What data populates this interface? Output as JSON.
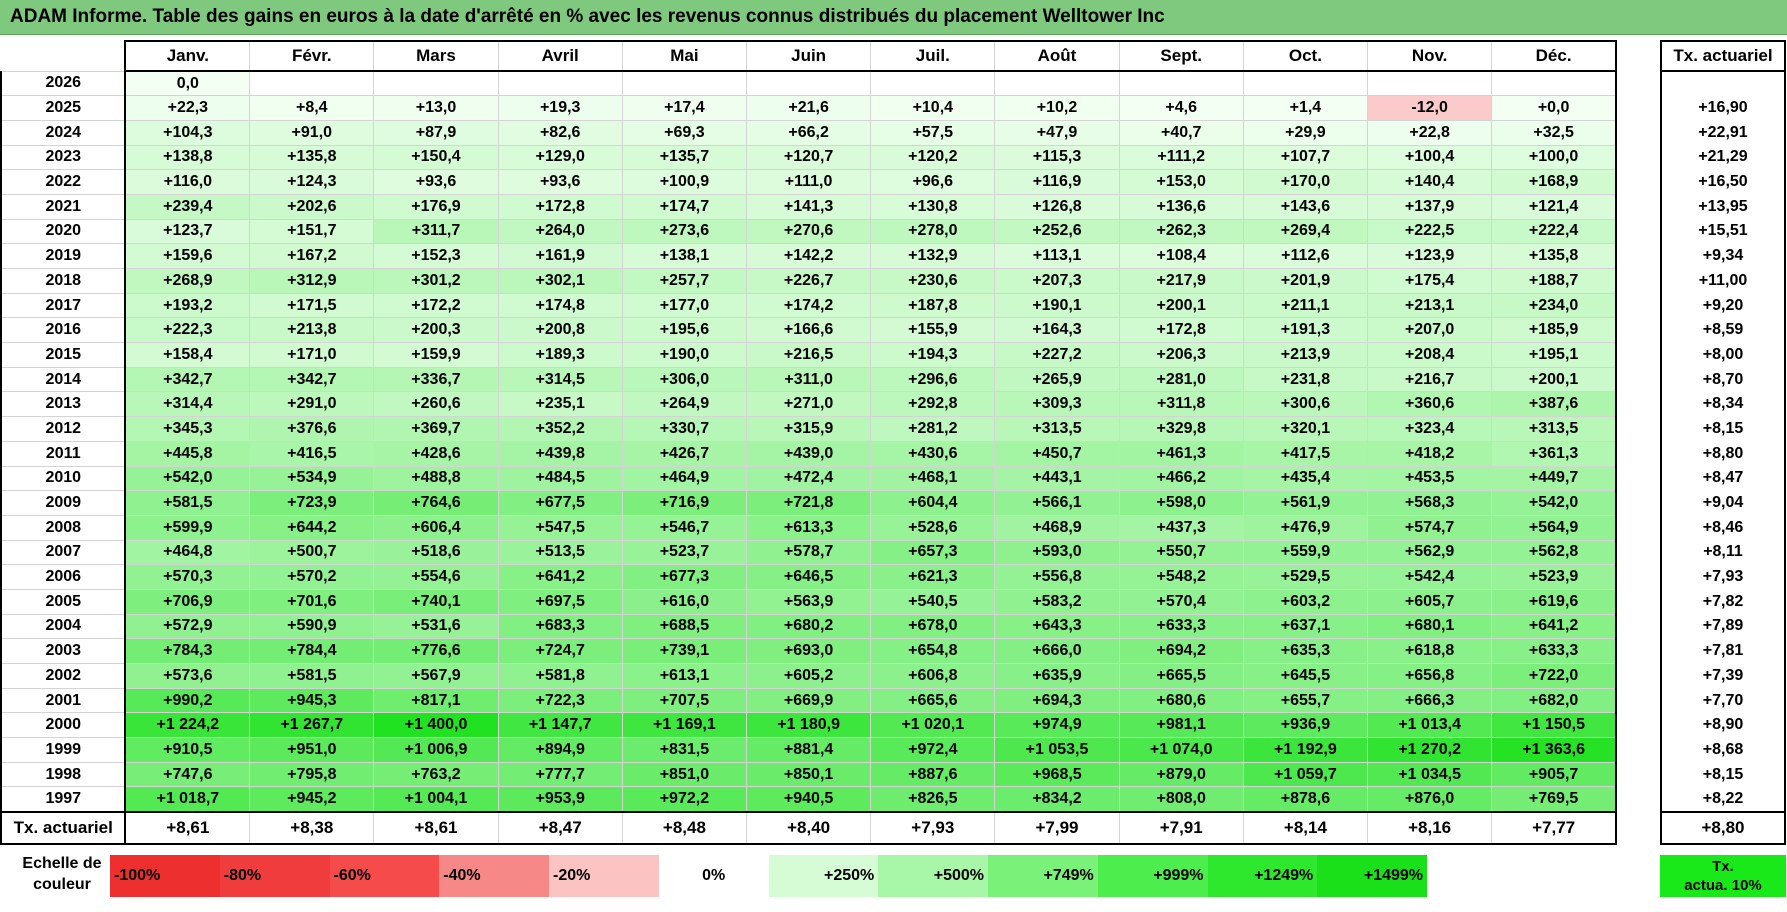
{
  "title": "ADAM Informe. Table des gains en euros à la date d'arrêté en % avec les revenus connus distribués du placement Welltower Inc",
  "chart_data": {
    "type": "table",
    "title": "ADAM Informe. Table des gains en euros à la date d'arrêté en % avec les revenus connus distribués du placement Welltower Inc",
    "columns": [
      "Janv.",
      "Févr.",
      "Mars",
      "Avril",
      "Mai",
      "Juin",
      "Juil.",
      "Août",
      "Sept.",
      "Oct.",
      "Nov.",
      "Déc."
    ],
    "side_header": "Tx. actuariel",
    "rows": [
      {
        "year": "2026",
        "values": [
          "0,0",
          "",
          "",
          "",
          "",
          "",
          "",
          "",
          "",
          "",
          "",
          ""
        ],
        "rate": ""
      },
      {
        "year": "2025",
        "values": [
          "+22,3",
          "+8,4",
          "+13,0",
          "+19,3",
          "+17,4",
          "+21,6",
          "+10,4",
          "+10,2",
          "+4,6",
          "+1,4",
          "-12,0",
          "+0,0"
        ],
        "rate": "+16,90"
      },
      {
        "year": "2024",
        "values": [
          "+104,3",
          "+91,0",
          "+87,9",
          "+82,6",
          "+69,3",
          "+66,2",
          "+57,5",
          "+47,9",
          "+40,7",
          "+29,9",
          "+22,8",
          "+32,5"
        ],
        "rate": "+22,91"
      },
      {
        "year": "2023",
        "values": [
          "+138,8",
          "+135,8",
          "+150,4",
          "+129,0",
          "+135,7",
          "+120,7",
          "+120,2",
          "+115,3",
          "+111,2",
          "+107,7",
          "+100,4",
          "+100,0"
        ],
        "rate": "+21,29"
      },
      {
        "year": "2022",
        "values": [
          "+116,0",
          "+124,3",
          "+93,6",
          "+93,6",
          "+100,9",
          "+111,0",
          "+96,6",
          "+116,9",
          "+153,0",
          "+170,0",
          "+140,4",
          "+168,9"
        ],
        "rate": "+16,50"
      },
      {
        "year": "2021",
        "values": [
          "+239,4",
          "+202,6",
          "+176,9",
          "+172,8",
          "+174,7",
          "+141,3",
          "+130,8",
          "+126,8",
          "+136,6",
          "+143,6",
          "+137,9",
          "+121,4"
        ],
        "rate": "+13,95"
      },
      {
        "year": "2020",
        "values": [
          "+123,7",
          "+151,7",
          "+311,7",
          "+264,0",
          "+273,6",
          "+270,6",
          "+278,0",
          "+252,6",
          "+262,3",
          "+269,4",
          "+222,5",
          "+222,4"
        ],
        "rate": "+15,51"
      },
      {
        "year": "2019",
        "values": [
          "+159,6",
          "+167,2",
          "+152,3",
          "+161,9",
          "+138,1",
          "+142,2",
          "+132,9",
          "+113,1",
          "+108,4",
          "+112,6",
          "+123,9",
          "+135,8"
        ],
        "rate": "+9,34"
      },
      {
        "year": "2018",
        "values": [
          "+268,9",
          "+312,9",
          "+301,2",
          "+302,1",
          "+257,7",
          "+226,7",
          "+230,6",
          "+207,3",
          "+217,9",
          "+201,9",
          "+175,4",
          "+188,7"
        ],
        "rate": "+11,00"
      },
      {
        "year": "2017",
        "values": [
          "+193,2",
          "+171,5",
          "+172,2",
          "+174,8",
          "+177,0",
          "+174,2",
          "+187,8",
          "+190,1",
          "+200,1",
          "+211,1",
          "+213,1",
          "+234,0"
        ],
        "rate": "+9,20"
      },
      {
        "year": "2016",
        "values": [
          "+222,3",
          "+213,8",
          "+200,3",
          "+200,8",
          "+195,6",
          "+166,6",
          "+155,9",
          "+164,3",
          "+172,8",
          "+191,3",
          "+207,0",
          "+185,9"
        ],
        "rate": "+8,59"
      },
      {
        "year": "2015",
        "values": [
          "+158,4",
          "+171,0",
          "+159,9",
          "+189,3",
          "+190,0",
          "+216,5",
          "+194,3",
          "+227,2",
          "+206,3",
          "+213,9",
          "+208,4",
          "+195,1"
        ],
        "rate": "+8,00"
      },
      {
        "year": "2014",
        "values": [
          "+342,7",
          "+342,7",
          "+336,7",
          "+314,5",
          "+306,0",
          "+311,0",
          "+296,6",
          "+265,9",
          "+281,0",
          "+231,8",
          "+216,7",
          "+200,1"
        ],
        "rate": "+8,70"
      },
      {
        "year": "2013",
        "values": [
          "+314,4",
          "+291,0",
          "+260,6",
          "+235,1",
          "+264,9",
          "+271,0",
          "+292,8",
          "+309,3",
          "+311,8",
          "+300,6",
          "+360,6",
          "+387,6"
        ],
        "rate": "+8,34"
      },
      {
        "year": "2012",
        "values": [
          "+345,3",
          "+376,6",
          "+369,7",
          "+352,2",
          "+330,7",
          "+315,9",
          "+281,2",
          "+313,5",
          "+329,8",
          "+320,1",
          "+323,4",
          "+313,5"
        ],
        "rate": "+8,15"
      },
      {
        "year": "2011",
        "values": [
          "+445,8",
          "+416,5",
          "+428,6",
          "+439,8",
          "+426,7",
          "+439,0",
          "+430,6",
          "+450,7",
          "+461,3",
          "+417,5",
          "+418,2",
          "+361,3"
        ],
        "rate": "+8,80"
      },
      {
        "year": "2010",
        "values": [
          "+542,0",
          "+534,9",
          "+488,8",
          "+484,5",
          "+464,9",
          "+472,4",
          "+468,1",
          "+443,1",
          "+466,2",
          "+435,4",
          "+453,5",
          "+449,7"
        ],
        "rate": "+8,47"
      },
      {
        "year": "2009",
        "values": [
          "+581,5",
          "+723,9",
          "+764,6",
          "+677,5",
          "+716,9",
          "+721,8",
          "+604,4",
          "+566,1",
          "+598,0",
          "+561,9",
          "+568,3",
          "+542,0"
        ],
        "rate": "+9,04"
      },
      {
        "year": "2008",
        "values": [
          "+599,9",
          "+644,2",
          "+606,4",
          "+547,5",
          "+546,7",
          "+613,3",
          "+528,6",
          "+468,9",
          "+437,3",
          "+476,9",
          "+574,7",
          "+564,9"
        ],
        "rate": "+8,46"
      },
      {
        "year": "2007",
        "values": [
          "+464,8",
          "+500,7",
          "+518,6",
          "+513,5",
          "+523,7",
          "+578,7",
          "+657,3",
          "+593,0",
          "+550,7",
          "+559,9",
          "+562,9",
          "+562,8"
        ],
        "rate": "+8,11"
      },
      {
        "year": "2006",
        "values": [
          "+570,3",
          "+570,2",
          "+554,6",
          "+641,2",
          "+677,3",
          "+646,5",
          "+621,3",
          "+556,8",
          "+548,2",
          "+529,5",
          "+542,4",
          "+523,9"
        ],
        "rate": "+7,93"
      },
      {
        "year": "2005",
        "values": [
          "+706,9",
          "+701,6",
          "+740,1",
          "+697,5",
          "+616,0",
          "+563,9",
          "+540,5",
          "+583,2",
          "+570,4",
          "+603,2",
          "+605,7",
          "+619,6"
        ],
        "rate": "+7,82"
      },
      {
        "year": "2004",
        "values": [
          "+572,9",
          "+590,9",
          "+531,6",
          "+683,3",
          "+688,5",
          "+680,2",
          "+678,0",
          "+643,3",
          "+633,3",
          "+637,1",
          "+680,1",
          "+641,2"
        ],
        "rate": "+7,89"
      },
      {
        "year": "2003",
        "values": [
          "+784,3",
          "+784,4",
          "+776,6",
          "+724,7",
          "+739,1",
          "+693,0",
          "+654,8",
          "+666,0",
          "+694,2",
          "+635,3",
          "+618,8",
          "+633,3"
        ],
        "rate": "+7,81"
      },
      {
        "year": "2002",
        "values": [
          "+573,6",
          "+581,5",
          "+567,9",
          "+581,8",
          "+613,1",
          "+605,2",
          "+606,8",
          "+635,9",
          "+665,5",
          "+645,5",
          "+656,8",
          "+722,0"
        ],
        "rate": "+7,39"
      },
      {
        "year": "2001",
        "values": [
          "+990,2",
          "+945,3",
          "+817,1",
          "+722,3",
          "+707,5",
          "+669,9",
          "+665,6",
          "+694,3",
          "+680,6",
          "+655,7",
          "+666,3",
          "+682,0"
        ],
        "rate": "+7,70"
      },
      {
        "year": "2000",
        "values": [
          "+1 224,2",
          "+1 267,7",
          "+1 400,0",
          "+1 147,7",
          "+1 169,1",
          "+1 180,9",
          "+1 020,1",
          "+974,9",
          "+981,1",
          "+936,9",
          "+1 013,4",
          "+1 150,5"
        ],
        "rate": "+8,90"
      },
      {
        "year": "1999",
        "values": [
          "+910,5",
          "+951,0",
          "+1 006,9",
          "+894,9",
          "+831,5",
          "+881,4",
          "+972,4",
          "+1 053,5",
          "+1 074,0",
          "+1 192,9",
          "+1 270,2",
          "+1 363,6"
        ],
        "rate": "+8,68"
      },
      {
        "year": "1998",
        "values": [
          "+747,6",
          "+795,8",
          "+763,2",
          "+777,7",
          "+851,0",
          "+850,1",
          "+887,6",
          "+968,5",
          "+879,0",
          "+1 059,7",
          "+1 034,5",
          "+905,7"
        ],
        "rate": "+8,15"
      },
      {
        "year": "1997",
        "values": [
          "+1 018,7",
          "+945,2",
          "+1 004,1",
          "+953,9",
          "+972,2",
          "+940,5",
          "+826,5",
          "+834,2",
          "+808,0",
          "+878,6",
          "+876,0",
          "+769,5"
        ],
        "rate": "+8,22"
      }
    ],
    "footer": {
      "label": "Tx. actuariel",
      "values": [
        "+8,61",
        "+8,38",
        "+8,61",
        "+8,47",
        "+8,48",
        "+8,40",
        "+7,93",
        "+7,99",
        "+7,91",
        "+8,14",
        "+8,16",
        "+7,77"
      ],
      "rate": "+8,80"
    },
    "color_scale": {
      "label": "Echelle de couleur",
      "stops": [
        {
          "text": "-100%",
          "color": "#ee2f2f",
          "align": "left"
        },
        {
          "text": "-80%",
          "color": "#f03c3c",
          "align": "left"
        },
        {
          "text": "-60%",
          "color": "#f54b4b",
          "align": "left"
        },
        {
          "text": "-40%",
          "color": "#f78888",
          "align": "left"
        },
        {
          "text": "-20%",
          "color": "#fcc3c3",
          "align": "left"
        },
        {
          "text": "0%",
          "color": "#ffffff",
          "align": "center"
        },
        {
          "text": "+250%",
          "color": "#d6fcd6",
          "align": "right"
        },
        {
          "text": "+500%",
          "color": "#a8f7a8",
          "align": "right"
        },
        {
          "text": "+749%",
          "color": "#7af27a",
          "align": "right"
        },
        {
          "text": "+999%",
          "color": "#4ced4c",
          "align": "right"
        },
        {
          "text": "+1249%",
          "color": "#2ee82e",
          "align": "right"
        },
        {
          "text": "+1499%",
          "color": "#19e019",
          "align": "right"
        }
      ],
      "final_label_line1": "Tx.",
      "final_label_line2": "actua. 10%",
      "final_color": "#19e819"
    }
  }
}
